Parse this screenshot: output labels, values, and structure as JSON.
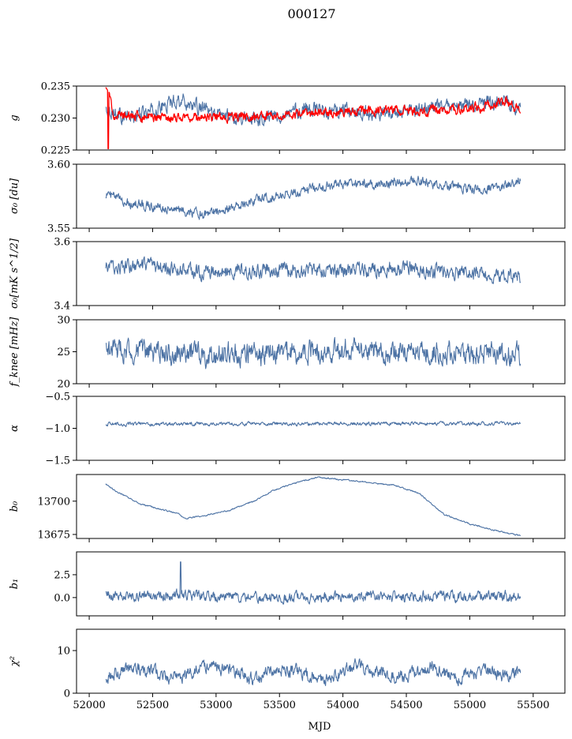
{
  "figure": {
    "title": "000127",
    "xlabel": "MJD",
    "xlim": [
      51900,
      55750
    ],
    "xticks": [
      52000,
      52500,
      53000,
      53500,
      54000,
      54500,
      55000,
      55500
    ],
    "x_start": 52130,
    "x_end": 55400,
    "series_color": "#4c72a4",
    "overlay_color": "#ff0000"
  },
  "chart_data": [
    {
      "type": "line",
      "ylabel": "g",
      "ylim": [
        0.225,
        0.235
      ],
      "yticks": [
        "0.225",
        "0.230",
        "0.235"
      ],
      "series": [
        {
          "color": "#4c72a4",
          "x": [
            52130,
            52300,
            52500,
            52700,
            53000,
            53300,
            53500,
            53700,
            54000,
            54300,
            54500,
            54700,
            55000,
            55200,
            55400
          ],
          "values": [
            0.2315,
            0.23,
            0.231,
            0.233,
            0.2305,
            0.23,
            0.2305,
            0.2315,
            0.231,
            0.2305,
            0.231,
            0.2315,
            0.232,
            0.2325,
            0.2315
          ]
        },
        {
          "color": "#ff0000",
          "x": [
            52130,
            52200,
            52400,
            52800,
            53200,
            53600,
            54000,
            54400,
            54800,
            55100,
            55300,
            55400
          ],
          "values": [
            0.2345,
            0.2305,
            0.2302,
            0.2301,
            0.2302,
            0.2305,
            0.231,
            0.2312,
            0.2312,
            0.2318,
            0.2325,
            0.2308
          ]
        }
      ]
    },
    {
      "type": "line",
      "ylabel": "σ₀ [du]",
      "ylim": [
        3.55,
        3.6
      ],
      "yticks": [
        "3.55",
        "3.60"
      ],
      "series": [
        {
          "color": "#4c72a4",
          "x": [
            52130,
            52300,
            52600,
            52900,
            53100,
            53400,
            53700,
            54000,
            54300,
            54600,
            54800,
            55000,
            55200,
            55400
          ],
          "values": [
            3.577,
            3.57,
            3.566,
            3.561,
            3.566,
            3.574,
            3.58,
            3.585,
            3.584,
            3.587,
            3.583,
            3.581,
            3.582,
            3.587
          ]
        }
      ]
    },
    {
      "type": "line",
      "ylabel": "σ₀[mK s^1/2]",
      "ylim": [
        3.4,
        3.6
      ],
      "yticks": [
        "3.4",
        "3.6"
      ],
      "series": [
        {
          "color": "#4c72a4",
          "x": [
            52130,
            52500,
            53000,
            53500,
            54000,
            54500,
            55000,
            55400
          ],
          "values": [
            3.52,
            3.52,
            3.5,
            3.51,
            3.51,
            3.52,
            3.5,
            3.49
          ]
        }
      ]
    },
    {
      "type": "line",
      "ylabel": "f_knee [mHz]",
      "ylim": [
        20,
        30
      ],
      "yticks": [
        "20",
        "25",
        "30"
      ],
      "series": [
        {
          "color": "#4c72a4",
          "x": [
            52130,
            52500,
            53000,
            53500,
            54000,
            54500,
            55000,
            55400
          ],
          "values": [
            25.5,
            24.8,
            24.6,
            25.0,
            25.2,
            24.9,
            24.8,
            24.5
          ]
        }
      ]
    },
    {
      "type": "line",
      "ylabel": "α",
      "ylim": [
        -1.5,
        -0.5
      ],
      "yticks": [
        "−1.5",
        "−1.0",
        "−0.5"
      ],
      "series": [
        {
          "color": "#4c72a4",
          "x": [
            52130,
            52500,
            53000,
            53500,
            54000,
            54500,
            55000,
            55400
          ],
          "values": [
            -0.93,
            -0.94,
            -0.93,
            -0.93,
            -0.93,
            -0.92,
            -0.93,
            -0.92
          ]
        }
      ]
    },
    {
      "type": "line",
      "ylabel": "b₀",
      "ylim": [
        13672,
        13720
      ],
      "yticks": [
        "13675",
        "13700"
      ],
      "series": [
        {
          "color": "#4c72a4",
          "x": [
            52130,
            52200,
            52400,
            52600,
            52700,
            52750,
            52900,
            53100,
            53300,
            53450,
            53600,
            53800,
            54000,
            54200,
            54400,
            54600,
            54800,
            55000,
            55200,
            55400
          ],
          "values": [
            13713,
            13708,
            13698,
            13693,
            13691,
            13687,
            13689,
            13693,
            13700,
            13708,
            13713,
            13718,
            13716,
            13714,
            13712,
            13706,
            13690,
            13683,
            13678,
            13674
          ]
        }
      ]
    },
    {
      "type": "line",
      "ylabel": "b₁",
      "ylim": [
        -2.0,
        5.0
      ],
      "yticks": [
        "0.0",
        "2.5"
      ],
      "series": [
        {
          "color": "#4c72a4",
          "x": [
            52130,
            52500,
            52700,
            53000,
            53500,
            54000,
            54500,
            55000,
            55400
          ],
          "values": [
            0.2,
            0.1,
            0.3,
            0.1,
            0.0,
            0.1,
            0.1,
            0.2,
            0.1
          ]
        }
      ]
    },
    {
      "type": "line",
      "ylabel": "χ²",
      "ylim": [
        0,
        15
      ],
      "yticks": [
        "0",
        "10"
      ],
      "series": [
        {
          "color": "#4c72a4",
          "x": [
            52130,
            52300,
            52500,
            52700,
            52900,
            53100,
            53300,
            53500,
            53700,
            53900,
            54100,
            54300,
            54500,
            54700,
            54900,
            55100,
            55300,
            55400
          ],
          "values": [
            3.5,
            6.0,
            5.0,
            3.0,
            6.5,
            5.5,
            3.0,
            6.0,
            4.5,
            3.5,
            6.5,
            4.5,
            4.0,
            6.0,
            3.5,
            5.5,
            4.0,
            5.0
          ]
        }
      ]
    }
  ]
}
